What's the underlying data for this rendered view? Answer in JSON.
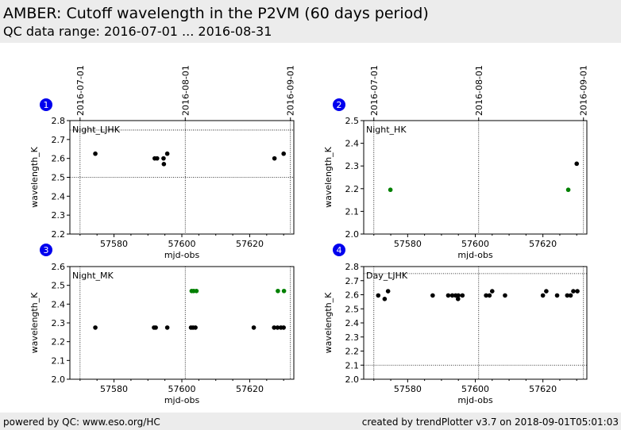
{
  "header": {
    "title": "AMBER: Cutoff wavelength in the P2VM (60 days period)",
    "subtitle": "QC data range: 2016-07-01 ... 2016-08-31"
  },
  "footer": {
    "left": "powered by QC: www.eso.org/HC",
    "right": "created by trendPlotter v3.7 on 2018-09-01T05:01:03"
  },
  "colors": {
    "black": "#000000",
    "green": "#008000",
    "badge": "#0000ee"
  },
  "date_axis": {
    "labels": [
      "2016-07-01",
      "2016-08-01",
      "2016-09-01"
    ],
    "mjd": [
      57570,
      57601,
      57632
    ]
  },
  "chart_data": [
    {
      "type": "scatter",
      "panel": "1",
      "label": "Night_LJHK",
      "xlabel": "mjd-obs",
      "ylabel": "wavelength_K",
      "xlim": [
        57567,
        57633
      ],
      "ylim": [
        2.2,
        2.8
      ],
      "xticks": [
        57580,
        57600,
        57620
      ],
      "yticks": [
        2.2,
        2.3,
        2.4,
        2.5,
        2.6,
        2.7,
        2.8
      ],
      "hlines": [
        2.5,
        2.75
      ],
      "points": [
        {
          "x": 57574.5,
          "y": 2.625,
          "c": "black"
        },
        {
          "x": 57592.0,
          "y": 2.6,
          "c": "black"
        },
        {
          "x": 57592.7,
          "y": 2.6,
          "c": "black"
        },
        {
          "x": 57594.6,
          "y": 2.6,
          "c": "black"
        },
        {
          "x": 57594.7,
          "y": 2.57,
          "c": "black"
        },
        {
          "x": 57595.7,
          "y": 2.625,
          "c": "black"
        },
        {
          "x": 57627.3,
          "y": 2.6,
          "c": "black"
        },
        {
          "x": 57630.0,
          "y": 2.625,
          "c": "black"
        }
      ]
    },
    {
      "type": "scatter",
      "panel": "2",
      "label": "Night_HK",
      "xlabel": "mjd-obs",
      "ylabel": "wavelength_K",
      "xlim": [
        57567,
        57633
      ],
      "ylim": [
        2.0,
        2.5
      ],
      "xticks": [
        57580,
        57600,
        57620
      ],
      "yticks": [
        2.0,
        2.1,
        2.2,
        2.3,
        2.4,
        2.5
      ],
      "hlines": [],
      "points": [
        {
          "x": 57574.9,
          "y": 2.195,
          "c": "green"
        },
        {
          "x": 57627.5,
          "y": 2.195,
          "c": "green"
        },
        {
          "x": 57630.0,
          "y": 2.31,
          "c": "black"
        }
      ]
    },
    {
      "type": "scatter",
      "panel": "3",
      "label": "Night_MK",
      "xlabel": "mjd-obs",
      "ylabel": "wavelength_K",
      "xlim": [
        57567,
        57633
      ],
      "ylim": [
        2.0,
        2.6
      ],
      "xticks": [
        57580,
        57600,
        57620
      ],
      "yticks": [
        2.0,
        2.1,
        2.2,
        2.3,
        2.4,
        2.5,
        2.6
      ],
      "hlines": [],
      "points": [
        {
          "x": 57574.5,
          "y": 2.275,
          "c": "black"
        },
        {
          "x": 57591.8,
          "y": 2.275,
          "c": "black"
        },
        {
          "x": 57592.3,
          "y": 2.275,
          "c": "black"
        },
        {
          "x": 57595.7,
          "y": 2.275,
          "c": "black"
        },
        {
          "x": 57602.7,
          "y": 2.275,
          "c": "black"
        },
        {
          "x": 57603.3,
          "y": 2.275,
          "c": "black"
        },
        {
          "x": 57604.0,
          "y": 2.275,
          "c": "black"
        },
        {
          "x": 57602.9,
          "y": 2.47,
          "c": "green"
        },
        {
          "x": 57603.5,
          "y": 2.47,
          "c": "green"
        },
        {
          "x": 57604.3,
          "y": 2.47,
          "c": "green"
        },
        {
          "x": 57621.2,
          "y": 2.275,
          "c": "black"
        },
        {
          "x": 57627.2,
          "y": 2.275,
          "c": "black"
        },
        {
          "x": 57628.2,
          "y": 2.275,
          "c": "black"
        },
        {
          "x": 57629.2,
          "y": 2.275,
          "c": "black"
        },
        {
          "x": 57630.0,
          "y": 2.275,
          "c": "black"
        },
        {
          "x": 57628.3,
          "y": 2.47,
          "c": "green"
        },
        {
          "x": 57630.1,
          "y": 2.47,
          "c": "green"
        }
      ]
    },
    {
      "type": "scatter",
      "panel": "4",
      "label": "Day_LJHK",
      "xlabel": "mjd-obs",
      "ylabel": "wavelength_K",
      "xlim": [
        57567,
        57633
      ],
      "ylim": [
        2.0,
        2.8
      ],
      "xticks": [
        57580,
        57600,
        57620
      ],
      "yticks": [
        2.0,
        2.1,
        2.2,
        2.3,
        2.4,
        2.5,
        2.6,
        2.7,
        2.8
      ],
      "hlines": [
        2.1,
        2.75
      ],
      "points": [
        {
          "x": 57571.3,
          "y": 2.595,
          "c": "black"
        },
        {
          "x": 57573.2,
          "y": 2.57,
          "c": "black"
        },
        {
          "x": 57574.2,
          "y": 2.625,
          "c": "black"
        },
        {
          "x": 57587.4,
          "y": 2.595,
          "c": "black"
        },
        {
          "x": 57592.0,
          "y": 2.595,
          "c": "black"
        },
        {
          "x": 57593.2,
          "y": 2.595,
          "c": "black"
        },
        {
          "x": 57594.2,
          "y": 2.595,
          "c": "black"
        },
        {
          "x": 57595.0,
          "y": 2.595,
          "c": "black"
        },
        {
          "x": 57594.9,
          "y": 2.57,
          "c": "black"
        },
        {
          "x": 57596.2,
          "y": 2.595,
          "c": "black"
        },
        {
          "x": 57603.2,
          "y": 2.595,
          "c": "black"
        },
        {
          "x": 57604.2,
          "y": 2.595,
          "c": "black"
        },
        {
          "x": 57605.0,
          "y": 2.625,
          "c": "black"
        },
        {
          "x": 57608.8,
          "y": 2.595,
          "c": "black"
        },
        {
          "x": 57620.0,
          "y": 2.595,
          "c": "black"
        },
        {
          "x": 57621.0,
          "y": 2.625,
          "c": "black"
        },
        {
          "x": 57624.2,
          "y": 2.595,
          "c": "black"
        },
        {
          "x": 57627.2,
          "y": 2.595,
          "c": "black"
        },
        {
          "x": 57628.2,
          "y": 2.595,
          "c": "black"
        },
        {
          "x": 57629.0,
          "y": 2.625,
          "c": "black"
        },
        {
          "x": 57630.2,
          "y": 2.625,
          "c": "black"
        }
      ]
    }
  ]
}
